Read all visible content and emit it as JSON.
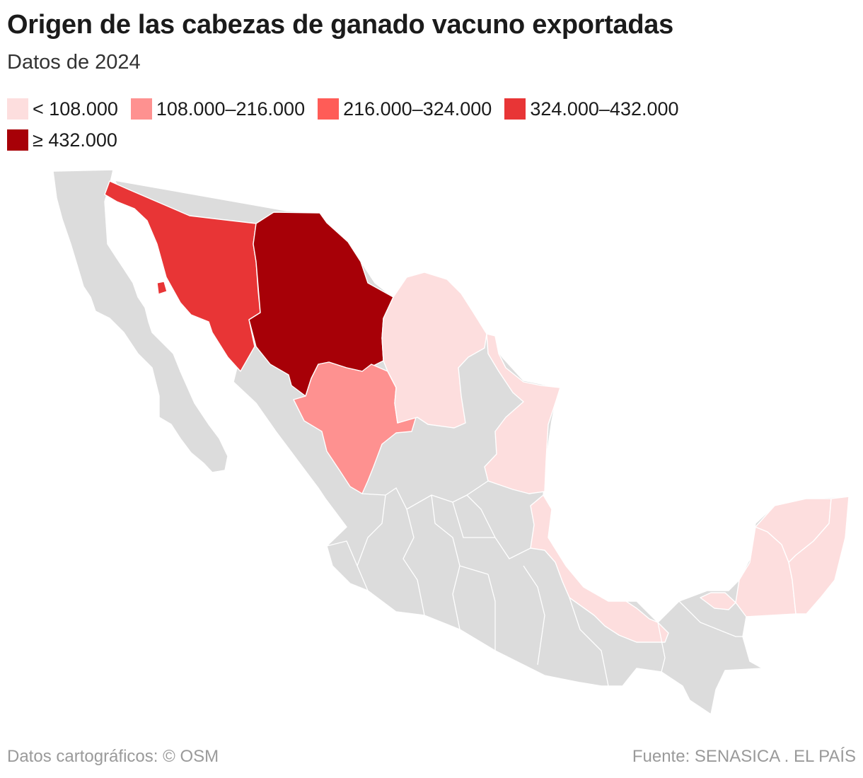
{
  "title": "Origen de las cabezas de ganado vacuno exportadas",
  "subtitle": "Datos de 2024",
  "legend": [
    {
      "label": "< 108.000",
      "color": "#fddede"
    },
    {
      "label": "108.000–216.000",
      "color": "#fe9190"
    },
    {
      "label": "216.000–324.000",
      "color": "#ff5c57"
    },
    {
      "label": "324.000–432.000",
      "color": "#e83536"
    },
    {
      "label": "≥ 432.000",
      "color": "#a70007"
    }
  ],
  "colors": {
    "no_data": "#dcdcdc",
    "lt_108k": "#fddede",
    "108k_216k": "#fe9190",
    "216k_324k": "#ff5c57",
    "324k_432k": "#e83536",
    "ge_432k": "#a70007"
  },
  "regions": [
    {
      "name": "Chihuahua",
      "class": "≥ 432.000"
    },
    {
      "name": "Sonora",
      "class": "324.000–432.000"
    },
    {
      "name": "Durango",
      "class": "108.000–216.000"
    },
    {
      "name": "Coahuila",
      "class": "< 108.000"
    },
    {
      "name": "Tamaulipas",
      "class": "< 108.000"
    },
    {
      "name": "Veracruz",
      "class": "< 108.000"
    },
    {
      "name": "Tabasco",
      "class": "< 108.000"
    },
    {
      "name": "Campeche",
      "class": "< 108.000"
    },
    {
      "name": "Yucatán",
      "class": "< 108.000"
    },
    {
      "name": "Quintana Roo",
      "class": "< 108.000"
    }
  ],
  "footer": {
    "credit": "Datos cartográficos: © OSM",
    "source": "Fuente: SENASICA . EL PAÍS"
  }
}
